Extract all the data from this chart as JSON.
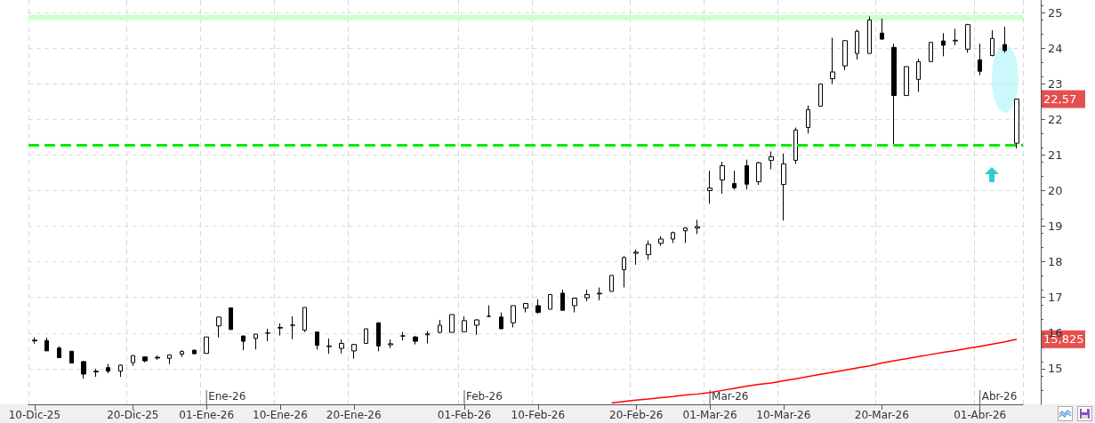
{
  "chart_data": {
    "type": "candlestick",
    "categories": [
      "10-Dic-25",
      null,
      null,
      null,
      null,
      null,
      null,
      null,
      "20-Dic-25",
      null,
      null,
      null,
      null,
      null,
      "01-Ene-26",
      null,
      null,
      null,
      null,
      null,
      "10-Ene-26",
      null,
      null,
      null,
      null,
      null,
      "20-Ene-26",
      null,
      null,
      null,
      null,
      null,
      null,
      null,
      null,
      "01-Feb-26",
      null,
      null,
      null,
      null,
      null,
      "10-Feb-26",
      null,
      null,
      null,
      null,
      null,
      null,
      null,
      "20-Feb-26",
      null,
      null,
      null,
      null,
      null,
      "01-Mar-26",
      null,
      null,
      null,
      null,
      null,
      "10-Mar-26",
      null,
      null,
      null,
      null,
      null,
      null,
      null,
      "20-Mar-26",
      null,
      null,
      null,
      null,
      null,
      null,
      null,
      "01-Abr-26",
      null,
      null,
      null
    ],
    "color": "#000000",
    "ohlc": [
      [
        15.8,
        15.88,
        15.7,
        15.78
      ],
      [
        15.79,
        15.87,
        15.5,
        15.5
      ],
      [
        15.58,
        15.63,
        15.31,
        15.31
      ],
      [
        15.49,
        15.49,
        15.16,
        15.16
      ],
      [
        15.2,
        15.22,
        14.72,
        14.85
      ],
      [
        14.91,
        15.0,
        14.77,
        14.93
      ],
      [
        15.03,
        15.13,
        14.87,
        14.93
      ],
      [
        14.93,
        15.12,
        14.77,
        15.1
      ],
      [
        15.17,
        15.37,
        15.08,
        15.37
      ],
      [
        15.33,
        15.35,
        15.18,
        15.22
      ],
      [
        15.32,
        15.37,
        15.25,
        15.3
      ],
      [
        15.29,
        15.39,
        15.13,
        15.39
      ],
      [
        15.41,
        15.52,
        15.33,
        15.48
      ],
      [
        15.52,
        15.53,
        15.41,
        15.42
      ],
      [
        15.43,
        15.89,
        15.43,
        15.89
      ],
      [
        16.2,
        16.45,
        15.88,
        16.45
      ],
      [
        16.71,
        16.71,
        16.1,
        16.1
      ],
      [
        15.92,
        15.92,
        15.52,
        15.77
      ],
      [
        15.85,
        15.97,
        15.54,
        15.97
      ],
      [
        16.0,
        16.12,
        15.77,
        16.0
      ],
      [
        16.14,
        16.27,
        15.93,
        16.16
      ],
      [
        16.22,
        16.47,
        15.83,
        16.22
      ],
      [
        16.08,
        16.72,
        16.03,
        16.72
      ],
      [
        16.03,
        16.03,
        15.54,
        15.66
      ],
      [
        15.62,
        15.85,
        15.42,
        15.64
      ],
      [
        15.57,
        15.82,
        15.43,
        15.71
      ],
      [
        15.5,
        15.68,
        15.28,
        15.68
      ],
      [
        15.71,
        16.12,
        15.71,
        16.12
      ],
      [
        16.29,
        16.29,
        15.49,
        15.64
      ],
      [
        15.67,
        15.82,
        15.58,
        15.7
      ],
      [
        15.92,
        16.03,
        15.79,
        15.92
      ],
      [
        15.89,
        15.92,
        15.68,
        15.77
      ],
      [
        15.95,
        16.06,
        15.71,
        15.98
      ],
      [
        16.02,
        16.37,
        16.0,
        16.22
      ],
      [
        16.02,
        16.52,
        16.02,
        16.52
      ],
      [
        16.04,
        16.47,
        16.04,
        16.35
      ],
      [
        16.22,
        16.39,
        15.95,
        16.37
      ],
      [
        16.47,
        16.78,
        16.45,
        16.47
      ],
      [
        16.45,
        16.58,
        16.12,
        16.12
      ],
      [
        16.29,
        16.77,
        16.16,
        16.77
      ],
      [
        16.7,
        16.85,
        16.58,
        16.83
      ],
      [
        16.77,
        16.95,
        16.54,
        16.58
      ],
      [
        16.67,
        17.08,
        16.67,
        17.08
      ],
      [
        17.12,
        17.22,
        16.64,
        16.64
      ],
      [
        16.77,
        16.98,
        16.58,
        16.98
      ],
      [
        16.99,
        17.22,
        16.89,
        17.08
      ],
      [
        17.1,
        17.28,
        16.92,
        17.12
      ],
      [
        17.17,
        17.62,
        17.17,
        17.62
      ],
      [
        17.78,
        18.16,
        17.28,
        18.12
      ],
      [
        18.24,
        18.35,
        17.92,
        18.27
      ],
      [
        18.2,
        18.6,
        18.06,
        18.49
      ],
      [
        18.52,
        18.72,
        18.45,
        18.64
      ],
      [
        18.64,
        18.85,
        18.53,
        18.82
      ],
      [
        18.87,
        18.97,
        18.53,
        18.95
      ],
      [
        18.95,
        19.18,
        18.78,
        18.99
      ],
      [
        20.0,
        20.56,
        19.63,
        20.07
      ],
      [
        20.3,
        20.81,
        19.91,
        20.7
      ],
      [
        20.2,
        20.56,
        20.03,
        20.08
      ],
      [
        20.7,
        20.87,
        20.03,
        20.18
      ],
      [
        20.25,
        20.81,
        20.16,
        20.78
      ],
      [
        20.85,
        21.1,
        20.6,
        20.95
      ],
      [
        20.17,
        21.04,
        19.16,
        20.75
      ],
      [
        20.85,
        21.77,
        20.75,
        21.7
      ],
      [
        21.77,
        22.39,
        21.6,
        22.27
      ],
      [
        22.37,
        22.99,
        22.37,
        22.99
      ],
      [
        23.14,
        24.29,
        22.99,
        23.33
      ],
      [
        23.5,
        24.21,
        23.38,
        24.21
      ],
      [
        23.85,
        24.52,
        23.68,
        24.47
      ],
      [
        23.85,
        24.89,
        23.85,
        24.79
      ],
      [
        24.42,
        24.83,
        24.25,
        24.25
      ],
      [
        24.02,
        24.12,
        21.27,
        22.67
      ],
      [
        22.67,
        23.48,
        22.67,
        23.48
      ],
      [
        23.12,
        23.7,
        22.77,
        23.62
      ],
      [
        23.62,
        24.16,
        23.62,
        24.16
      ],
      [
        24.2,
        24.42,
        23.77,
        24.08
      ],
      [
        24.2,
        24.54,
        24.08,
        24.22
      ],
      [
        23.97,
        24.68,
        23.87,
        24.66
      ],
      [
        23.67,
        24.12,
        23.24,
        23.35
      ],
      [
        23.79,
        24.5,
        23.77,
        24.27
      ],
      [
        24.1,
        24.6,
        23.87,
        23.93
      ],
      [
        21.33,
        22.57,
        21.18,
        22.57
      ]
    ],
    "series": [
      {
        "type": "line",
        "color": "#ff0000",
        "values": [
          null,
          null,
          null,
          null,
          null,
          null,
          null,
          null,
          null,
          null,
          null,
          null,
          null,
          null,
          null,
          null,
          null,
          null,
          null,
          null,
          null,
          null,
          null,
          null,
          null,
          null,
          null,
          null,
          null,
          null,
          null,
          null,
          null,
          null,
          null,
          null,
          null,
          null,
          null,
          null,
          null,
          null,
          null,
          null,
          null,
          null,
          null,
          14.04,
          14.08,
          14.12,
          14.15,
          14.19,
          14.22,
          14.26,
          14.29,
          14.33,
          14.39,
          14.45,
          14.51,
          14.56,
          14.6,
          14.66,
          14.72,
          14.78,
          14.84,
          14.9,
          14.96,
          15.02,
          15.08,
          15.16,
          15.22,
          15.28,
          15.34,
          15.4,
          15.46,
          15.51,
          15.57,
          15.63,
          15.69,
          15.75,
          15.825
        ]
      }
    ],
    "ylim": [
      14,
      25.35
    ],
    "yticks": [
      15,
      16,
      17,
      18,
      19,
      20,
      21,
      22,
      23,
      24,
      25
    ],
    "grid": true,
    "ref_lines": [
      {
        "axis": "y",
        "value": 21.27,
        "color": "#00ee00",
        "line_style": "dashed"
      }
    ],
    "bands": [
      {
        "axis": "y",
        "from": 24.78,
        "to": 24.93,
        "color": "#ccffcc"
      }
    ],
    "annotations": [
      "Ene-26",
      "Feb-26",
      "Mar-26",
      "Abr-26",
      "22,57",
      "15,825"
    ]
  }
}
